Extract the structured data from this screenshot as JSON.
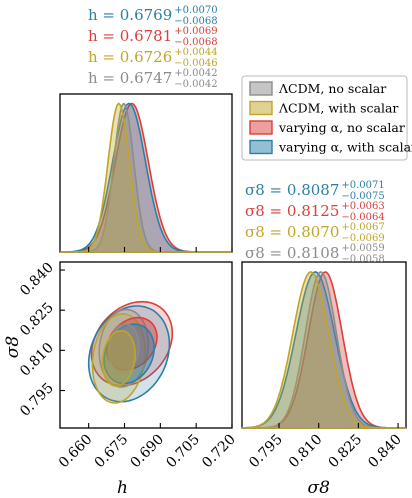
{
  "chart_data": {
    "type": "corner-plot",
    "colors": {
      "lcdm_no_scalar": "#8c8c8c",
      "lcdm_with_scalar": "#bfa52a",
      "varying_no_scalar": "#d9403a",
      "varying_with_scalar": "#2a7fa8"
    },
    "legend": [
      {
        "key": "lcdm_no_scalar",
        "label": "ΛCDM, no scalar"
      },
      {
        "key": "lcdm_with_scalar",
        "label": "ΛCDM, with scalar"
      },
      {
        "key": "varying_no_scalar",
        "label": "varying α, no scalar"
      },
      {
        "key": "varying_with_scalar",
        "label": "varying α, with scalar"
      }
    ],
    "legend_position": "top-right",
    "h_annotations": [
      {
        "key": "varying_with_scalar",
        "prefix": "h = ",
        "value": "0.6769",
        "plus": "+0.0070",
        "minus": "−0.0068"
      },
      {
        "key": "varying_no_scalar",
        "prefix": "h = ",
        "value": "0.6781",
        "plus": "+0.0069",
        "minus": "−0.0068"
      },
      {
        "key": "lcdm_with_scalar",
        "prefix": "h = ",
        "value": "0.6726",
        "plus": "+0.0044",
        "minus": "−0.0046"
      },
      {
        "key": "lcdm_no_scalar",
        "prefix": "h = ",
        "value": "0.6747",
        "plus": "+0.0042",
        "minus": "−0.0042"
      }
    ],
    "s8_annotations": [
      {
        "key": "varying_with_scalar",
        "prefix": "σ8 = ",
        "value": "0.8087",
        "plus": "+0.0071",
        "minus": "−0.0075"
      },
      {
        "key": "varying_no_scalar",
        "prefix": "σ8 = ",
        "value": "0.8125",
        "plus": "+0.0063",
        "minus": "−0.0064"
      },
      {
        "key": "lcdm_with_scalar",
        "prefix": "σ8 = ",
        "value": "0.8070",
        "plus": "+0.0067",
        "minus": "−0.0069"
      },
      {
        "key": "lcdm_no_scalar",
        "prefix": "σ8 = ",
        "value": "0.8108",
        "plus": "+0.0059",
        "minus": "−0.0058"
      }
    ],
    "series": [
      {
        "key": "lcdm_no_scalar",
        "h_mean": 0.6747,
        "h_sigma": 0.0042,
        "s8_mean": 0.8108,
        "s8_sigma": 0.0059,
        "rho": 0.1
      },
      {
        "key": "lcdm_with_scalar",
        "h_mean": 0.6726,
        "h_sigma": 0.0045,
        "s8_mean": 0.807,
        "s8_sigma": 0.0068,
        "rho": 0.15
      },
      {
        "key": "varying_no_scalar",
        "h_mean": 0.6781,
        "h_sigma": 0.0069,
        "s8_mean": 0.8125,
        "s8_sigma": 0.0064,
        "rho": 0.25
      },
      {
        "key": "varying_with_scalar",
        "h_mean": 0.6769,
        "h_sigma": 0.0069,
        "s8_mean": 0.8087,
        "s8_sigma": 0.0073,
        "rho": 0.2
      }
    ],
    "h_axis": {
      "label": "h",
      "range": [
        0.648,
        0.72
      ],
      "ticks": [
        "0.660",
        "0.675",
        "0.690",
        "0.705",
        "0.720"
      ]
    },
    "s8_axis": {
      "label": "σ8",
      "range": [
        0.781,
        0.843
      ],
      "ticks": [
        "0.795",
        "0.810",
        "0.825",
        "0.840"
      ]
    }
  }
}
